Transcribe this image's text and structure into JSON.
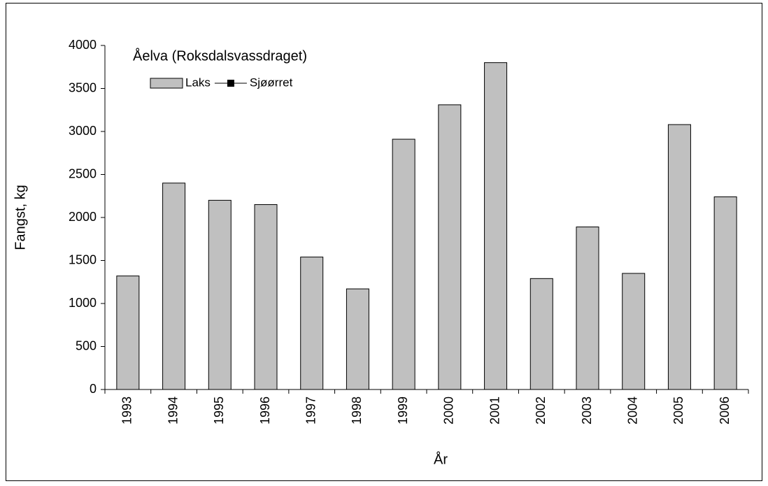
{
  "chart_data": {
    "type": "bar",
    "title": "Åelva (Roksdalsvassdraget)",
    "x_label": "År",
    "y_label": "Fangst, kg",
    "categories": [
      "1993",
      "1994",
      "1995",
      "1996",
      "1997",
      "1998",
      "1999",
      "2000",
      "2001",
      "2002",
      "2003",
      "2004",
      "2005",
      "2006"
    ],
    "series": [
      {
        "name": "Laks",
        "type": "bar",
        "color": "#c0c0c0",
        "values": [
          1320,
          2400,
          2200,
          2150,
          1540,
          1170,
          2910,
          3310,
          3800,
          1290,
          1890,
          1350,
          3080,
          2240
        ]
      },
      {
        "name": "Sjøørret",
        "type": "line",
        "color": "#000000",
        "values": [
          null,
          null,
          null,
          null,
          null,
          null,
          null,
          null,
          null,
          null,
          null,
          null,
          null,
          null
        ]
      }
    ],
    "ylim": [
      0,
      4000
    ],
    "yticks": [
      0,
      500,
      1000,
      1500,
      2000,
      2500,
      3000,
      3500,
      4000
    ],
    "grid": false
  }
}
